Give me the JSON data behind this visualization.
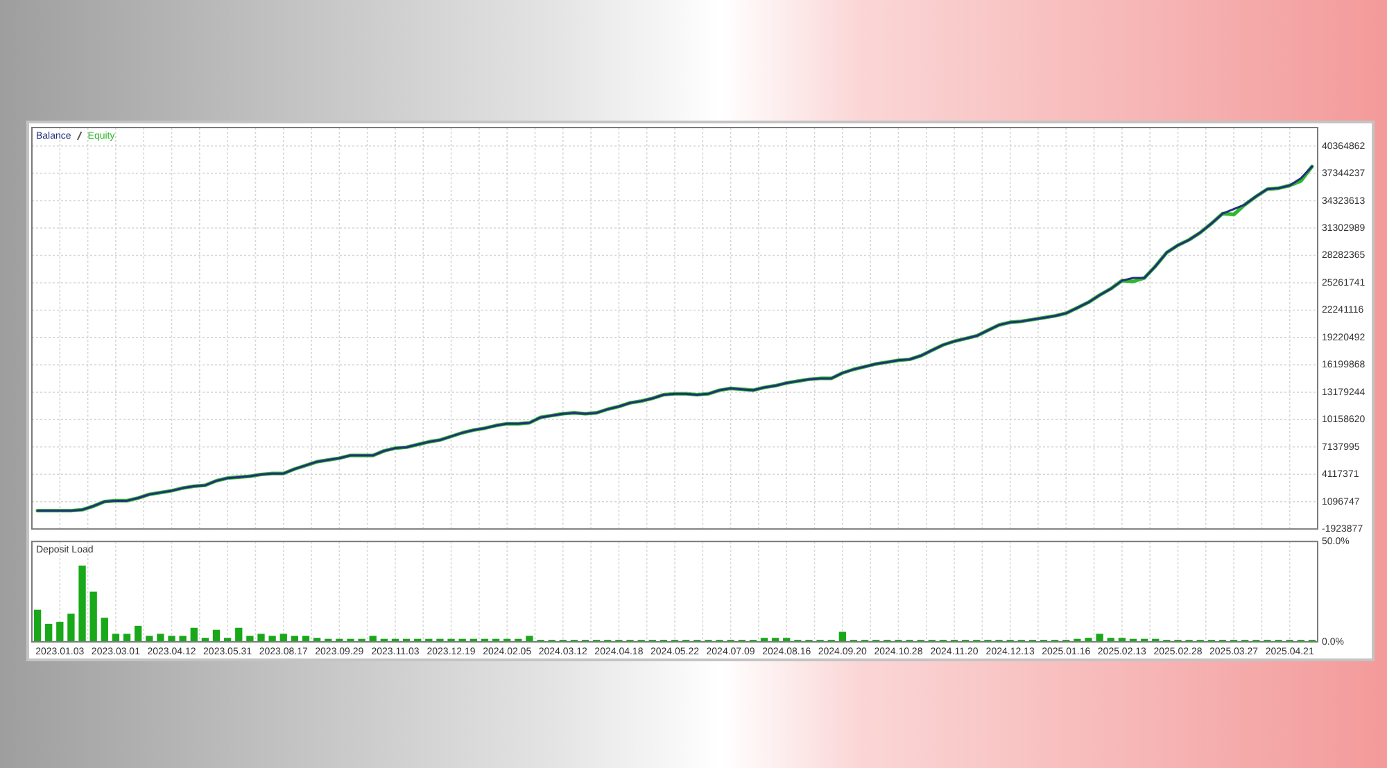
{
  "chart_data": [
    {
      "type": "line",
      "legend": "top left",
      "grid": true,
      "tick_labels": "y",
      "categories": [
        null,
        null,
        "2023.01.03",
        null,
        null,
        null,
        null,
        "2023.03.01",
        null,
        null,
        null,
        null,
        "2023.04.12",
        null,
        null,
        null,
        null,
        "2023.05.31",
        null,
        null,
        null,
        null,
        "2023.08.17",
        null,
        null,
        null,
        null,
        "2023.09.29",
        null,
        null,
        null,
        null,
        "2023.11.03",
        null,
        null,
        null,
        null,
        "2023.12.19",
        null,
        null,
        null,
        null,
        "2024.02.05",
        null,
        null,
        null,
        null,
        "2024.03.12",
        null,
        null,
        null,
        null,
        "2024.04.18",
        null,
        null,
        null,
        null,
        "2024.05.22",
        null,
        null,
        null,
        null,
        "2024.07.09",
        null,
        null,
        null,
        null,
        "2024.08.16",
        null,
        null,
        null,
        null,
        "2024.09.20",
        null,
        null,
        null,
        null,
        "2024.10.28",
        null,
        null,
        null,
        null,
        "2024.11.20",
        null,
        null,
        null,
        null,
        "2024.12.13",
        null,
        null,
        null,
        null,
        "2025.01.16",
        null,
        null,
        null,
        null,
        "2025.02.13",
        null,
        null,
        null,
        null,
        "2025.02.28",
        null,
        null,
        null,
        null,
        "2025.03.27",
        null,
        null,
        null,
        null,
        "2025.04.21",
        null,
        null
      ],
      "ylim": [
        -1923877,
        42400000
      ],
      "yticks": [
        -1923877,
        1096747,
        4117371,
        7137995,
        10158620,
        13179244,
        16199868,
        19220492,
        22241116,
        25261741,
        28282365,
        31302989,
        34323613,
        37344237,
        40364862
      ],
      "series": [
        {
          "name": "Balance",
          "color": "#23307a",
          "values": [
            100000,
            100000,
            100000,
            100000,
            200000,
            600000,
            1100000,
            1200000,
            1200000,
            1500000,
            1900000,
            2100000,
            2300000,
            2600000,
            2800000,
            2900000,
            3400000,
            3700000,
            3800000,
            3900000,
            4100000,
            4200000,
            4200000,
            4700000,
            5100000,
            5500000,
            5700000,
            5900000,
            6200000,
            6200000,
            6200000,
            6700000,
            7000000,
            7100000,
            7400000,
            7700000,
            7900000,
            8300000,
            8700000,
            9000000,
            9200000,
            9500000,
            9700000,
            9700000,
            9800000,
            10400000,
            10600000,
            10800000,
            10900000,
            10800000,
            10900000,
            11300000,
            11600000,
            12000000,
            12200000,
            12500000,
            12900000,
            13000000,
            13000000,
            12900000,
            13000000,
            13400000,
            13600000,
            13500000,
            13400000,
            13700000,
            13900000,
            14200000,
            14400000,
            14600000,
            14700000,
            14700000,
            15300000,
            15700000,
            16000000,
            16300000,
            16500000,
            16700000,
            16800000,
            17200000,
            17800000,
            18400000,
            18800000,
            19100000,
            19400000,
            20000000,
            20600000,
            20900000,
            21000000,
            21200000,
            21400000,
            21600000,
            21900000,
            22500000,
            23100000,
            23900000,
            24600000,
            25500000,
            25800000,
            25800000,
            27100000,
            28600000,
            29400000,
            30000000,
            30800000,
            31800000,
            32900000,
            33400000,
            33900000,
            34800000,
            35600000,
            35700000,
            36000000,
            36800000,
            38100000
          ]
        },
        {
          "name": "Equity",
          "color": "#2eb82e",
          "values": [
            100000,
            100000,
            100000,
            100000,
            200000,
            600000,
            1100000,
            1200000,
            1200000,
            1500000,
            1900000,
            2100000,
            2300000,
            2600000,
            2800000,
            2900000,
            3400000,
            3700000,
            3800000,
            3900000,
            4100000,
            4200000,
            4200000,
            4700000,
            5100000,
            5500000,
            5700000,
            5900000,
            6200000,
            6200000,
            6200000,
            6700000,
            7000000,
            7100000,
            7400000,
            7700000,
            7900000,
            8300000,
            8700000,
            9000000,
            9200000,
            9500000,
            9700000,
            9700000,
            9800000,
            10400000,
            10600000,
            10800000,
            10900000,
            10800000,
            10900000,
            11300000,
            11600000,
            12000000,
            12200000,
            12500000,
            12900000,
            13000000,
            13000000,
            12900000,
            13000000,
            13400000,
            13600000,
            13500000,
            13400000,
            13700000,
            13900000,
            14200000,
            14400000,
            14600000,
            14700000,
            14700000,
            15300000,
            15700000,
            16000000,
            16300000,
            16500000,
            16700000,
            16800000,
            17200000,
            17800000,
            18400000,
            18800000,
            19100000,
            19400000,
            20000000,
            20600000,
            20900000,
            21000000,
            21200000,
            21400000,
            21600000,
            21900000,
            22500000,
            23100000,
            23900000,
            24600000,
            25500000,
            25400000,
            25800000,
            27100000,
            28600000,
            29400000,
            30000000,
            30800000,
            31800000,
            32900000,
            32800000,
            33900000,
            34800000,
            35600000,
            35700000,
            36000000,
            36500000,
            38100000
          ]
        }
      ]
    },
    {
      "type": "bar",
      "title": "Deposit Load",
      "grid": "x",
      "color": "#19a819",
      "categories": [
        null,
        null,
        "2023.01.03",
        null,
        null,
        null,
        null,
        "2023.03.01",
        null,
        null,
        null,
        null,
        "2023.04.12",
        null,
        null,
        null,
        null,
        "2023.05.31",
        null,
        null,
        null,
        null,
        "2023.08.17",
        null,
        null,
        null,
        null,
        "2023.09.29",
        null,
        null,
        null,
        null,
        "2023.11.03",
        null,
        null,
        null,
        null,
        "2023.12.19",
        null,
        null,
        null,
        null,
        "2024.02.05",
        null,
        null,
        null,
        null,
        "2024.03.12",
        null,
        null,
        null,
        null,
        "2024.04.18",
        null,
        null,
        null,
        null,
        "2024.05.22",
        null,
        null,
        null,
        null,
        "2024.07.09",
        null,
        null,
        null,
        null,
        "2024.08.16",
        null,
        null,
        null,
        null,
        "2024.09.20",
        null,
        null,
        null,
        null,
        "2024.10.28",
        null,
        null,
        null,
        null,
        "2024.11.20",
        null,
        null,
        null,
        null,
        "2024.12.13",
        null,
        null,
        null,
        null,
        "2025.01.16",
        null,
        null,
        null,
        null,
        "2025.02.13",
        null,
        null,
        null,
        null,
        "2025.02.28",
        null,
        null,
        null,
        null,
        "2025.03.27",
        null,
        null,
        null,
        null,
        "2025.04.21",
        null,
        null
      ],
      "ylim": [
        0,
        50
      ],
      "yticks": [
        {
          "value": 0,
          "label": "0.0%"
        },
        {
          "value": 50,
          "label": "50.0%"
        }
      ],
      "values": [
        16,
        9,
        10,
        14,
        38,
        25,
        12,
        4,
        4,
        8,
        3,
        4,
        3,
        3,
        7,
        2,
        6,
        2,
        7,
        3,
        4,
        3,
        4,
        3,
        3,
        2,
        1.5,
        1.5,
        1.5,
        1.5,
        3,
        1.5,
        1.5,
        1.5,
        1.5,
        1.5,
        1.5,
        1.5,
        1.5,
        1.5,
        1.5,
        1.5,
        1.5,
        1.5,
        3,
        1,
        1,
        1,
        1,
        1,
        1,
        1,
        1,
        1,
        1,
        1,
        1,
        1,
        1,
        1,
        1,
        1,
        1,
        1,
        1,
        2,
        2,
        2,
        1,
        1,
        1,
        1,
        5,
        1,
        1,
        1,
        1,
        1,
        1,
        1,
        1,
        1,
        1,
        1,
        1,
        1,
        1,
        1,
        1,
        1,
        1,
        1,
        1,
        1.5,
        2,
        4,
        2,
        2,
        1.5,
        1.5,
        1.5,
        1,
        1,
        1,
        1,
        1,
        1,
        1,
        1,
        1,
        1,
        1,
        1,
        1,
        1
      ]
    }
  ]
}
